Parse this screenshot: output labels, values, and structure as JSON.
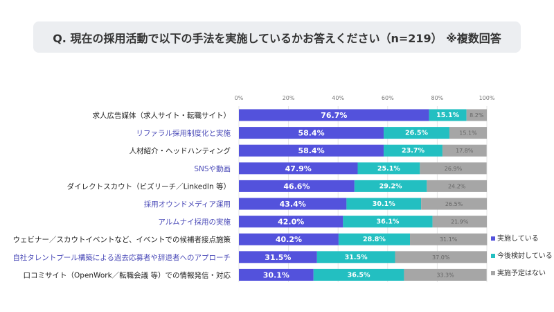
{
  "title": "Q. 現在の採用活動で以下の手法を実施しているかお答えください（n=219） ※複数回答",
  "chart_data": {
    "type": "bar",
    "stacked": true,
    "orientation": "horizontal",
    "xlim": [
      0,
      100
    ],
    "x_ticks": [
      "0%",
      "20%",
      "40%",
      "60%",
      "80%",
      "100%"
    ],
    "grid": true,
    "legend_position": "right",
    "categories": [
      "求人広告媒体（求人サイト・転職サイト）",
      "リファラル採用制度化と実施",
      "人材紹介・ヘッドハンティング",
      "SNSや動画",
      "ダイレクトスカウト（ビズリーチ／LinkedIn 等）",
      "採用オウンドメディア運用",
      "アルムナイ採用の実施",
      "ウェビナー／スカウトイベントなど、イベントでの候補者接点施策",
      "自社タレントプール構築による過去応募者や辞退者へのアプローチ",
      "口コミサイト（OpenWork／転職会議 等）での情報発信・対応"
    ],
    "highlighted_categories": [
      1,
      3,
      5,
      6,
      8
    ],
    "series": [
      {
        "name": "実施している",
        "color": "#5352dc",
        "values": [
          76.7,
          58.4,
          58.4,
          47.9,
          46.6,
          43.4,
          42.0,
          40.2,
          31.5,
          30.1
        ]
      },
      {
        "name": "今後検討している",
        "color": "#23bfc1",
        "values": [
          15.1,
          26.5,
          23.7,
          25.1,
          29.2,
          30.1,
          36.1,
          28.8,
          31.5,
          36.5
        ]
      },
      {
        "name": "実施予定はない",
        "color": "#a6a6a6",
        "values": [
          8.2,
          15.1,
          17.8,
          26.9,
          24.2,
          26.5,
          21.9,
          31.1,
          37.0,
          33.3
        ]
      }
    ]
  }
}
